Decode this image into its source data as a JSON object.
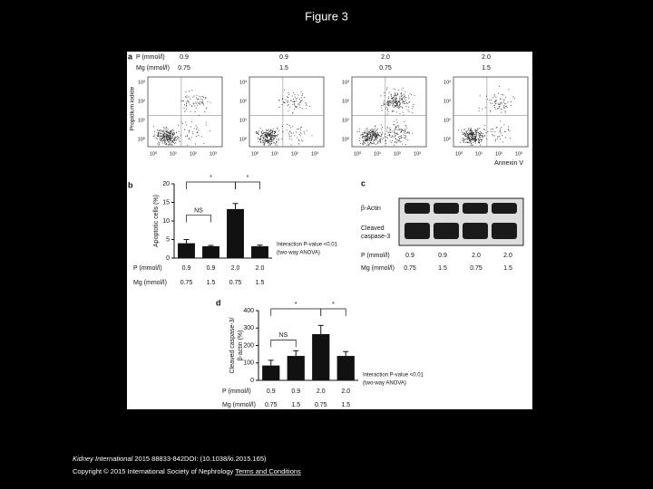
{
  "title": "Figure 3",
  "panel_a": {
    "label": "a",
    "rows": [
      {
        "name": "P (mmol/l)",
        "values": [
          "0.9",
          "0.9",
          "2.0",
          "2.0"
        ]
      },
      {
        "name": "Mg (mmol/l)",
        "values": [
          "0.75",
          "1.5",
          "0.75",
          "1.5"
        ]
      }
    ],
    "y_label": "Propidium iodide",
    "x_label": "Annexin V",
    "yticks": [
      "10³",
      "10²",
      "10¹",
      "10⁰"
    ],
    "xticks": [
      "10⁰",
      "10¹",
      "10²",
      "10³"
    ]
  },
  "panel_c": {
    "label": "c",
    "bands": [
      "β-Actin",
      "Cleaved caspase-3"
    ],
    "rows": [
      {
        "name": "P (mmol/l)",
        "values": [
          "0.9",
          "0.9",
          "2.0",
          "2.0"
        ]
      },
      {
        "name": "Mg (mmol/l)",
        "values": [
          "0.75",
          "1.5",
          "0.75",
          "1.5"
        ]
      }
    ]
  },
  "chart_data": [
    {
      "type": "bar",
      "label": "b",
      "y_label": "Apoptotic cells (%)",
      "values": [
        4,
        3.2,
        13.2,
        3.2
      ],
      "errors": [
        1,
        0.2,
        1.5,
        0.3
      ],
      "color": "#111111",
      "ylim": [
        0,
        20
      ],
      "yticks": [
        0,
        5,
        10,
        15,
        20
      ],
      "rows": [
        {
          "name": "P (mmol/l)",
          "values": [
            "0.9",
            "0.9",
            "2.0",
            "2.0"
          ]
        },
        {
          "name": "Mg (mmol/l)",
          "values": [
            "0.75",
            "1.5",
            "0.75",
            "1.5"
          ]
        }
      ],
      "annotations": [
        "NS",
        "*",
        "*"
      ],
      "note": [
        "Interaction P-value <0.01",
        "(two-way ANOVA)"
      ]
    },
    {
      "type": "bar",
      "label": "d",
      "y_label": [
        "Cleaved caspase-3/",
        "β-actin (%)"
      ],
      "values": [
        85,
        140,
        265,
        140
      ],
      "errors": [
        30,
        30,
        50,
        25
      ],
      "color": "#111111",
      "ylim": [
        0,
        400
      ],
      "yticks": [
        0,
        100,
        200,
        300,
        400
      ],
      "rows": [
        {
          "name": "P (mmol/l)",
          "values": [
            "0.9",
            "0.9",
            "2.0",
            "2.0"
          ]
        },
        {
          "name": "Mg (mmol/l)",
          "values": [
            "0.75",
            "1.5",
            "0.75",
            "1.5"
          ]
        }
      ],
      "annotations": [
        "NS",
        "*",
        "*"
      ],
      "note": [
        "Interaction P-value <0.01",
        "(two-way ANOVA)"
      ]
    }
  ],
  "footer": {
    "journal": "Kidney International",
    "citation": " 2015 88833-842DOI: (10.1038/ki.2015.165)",
    "copyright": "Copyright © 2015 International Society of Nephrology ",
    "link": "Terms and Conditions"
  }
}
